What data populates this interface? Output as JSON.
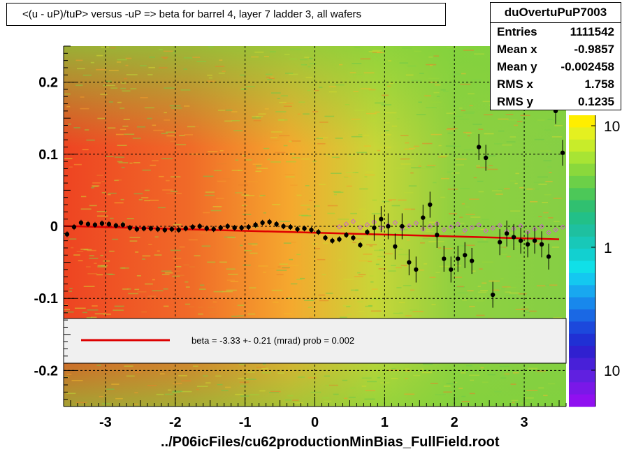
{
  "chart_data": {
    "type": "heatmap",
    "title": "<(u - uP)/tuP> versus  -uP => beta for barrel 4, layer 7 ladder 3, all wafers",
    "xlabel": "../P06icFiles/cu62productionMinBias_FullField.root",
    "ylabel": "",
    "xlim": [
      -3.6,
      3.6
    ],
    "ylim": [
      -0.25,
      0.25
    ],
    "x_ticks": [
      -3,
      -2,
      -1,
      0,
      1,
      2,
      3
    ],
    "y_ticks": [
      -0.2,
      -0.1,
      0,
      0.1,
      0.2
    ],
    "x_tick_labels": [
      "-3",
      "-2",
      "-1",
      "0",
      "1",
      "2",
      "3"
    ],
    "y_tick_labels": [
      "-0.2",
      "-0.1",
      "0",
      "0.1",
      "0.2"
    ],
    "grid": true,
    "colorbar": {
      "ticks": [
        "10",
        "1",
        "10"
      ],
      "log": true
    },
    "stats": {
      "name": "duOvertuPuP7003",
      "rows": [
        {
          "label": "Entries",
          "value": "1111542"
        },
        {
          "label": "Mean x",
          "value": "-0.9857"
        },
        {
          "label": "Mean y",
          "value": "-0.002458"
        },
        {
          "label": "RMS x",
          "value": "1.758"
        },
        {
          "label": "RMS y",
          "value": "0.1235"
        }
      ]
    },
    "legend": {
      "text": "beta =   -3.33 +-  0.21 (mrad) prob = 0.002",
      "line_color": "#dd0000"
    },
    "fit_line": {
      "x": [
        -3.6,
        3.5
      ],
      "y": [
        0.0005,
        -0.018
      ]
    },
    "profile_points": {
      "x": [
        -3.55,
        -3.45,
        -3.35,
        -3.25,
        -3.15,
        -3.05,
        -2.95,
        -2.85,
        -2.75,
        -2.65,
        -2.55,
        -2.45,
        -2.35,
        -2.25,
        -2.15,
        -2.05,
        -1.95,
        -1.85,
        -1.75,
        -1.65,
        -1.55,
        -1.45,
        -1.35,
        -1.25,
        -1.15,
        -1.05,
        -0.95,
        -0.85,
        -0.75,
        -0.65,
        -0.55,
        -0.45,
        -0.35,
        -0.25,
        -0.15,
        -0.05,
        0.05,
        0.15,
        0.25,
        0.35,
        0.45,
        0.55,
        0.65,
        0.75,
        0.85,
        0.95,
        1.05,
        1.15,
        1.25,
        1.35,
        1.45,
        1.55,
        1.65,
        1.75,
        1.85,
        1.95,
        2.05,
        2.15,
        2.25,
        2.35,
        2.45,
        2.55,
        2.65,
        2.75,
        2.85,
        2.95,
        3.05,
        3.15,
        3.25,
        3.35,
        3.45,
        3.55
      ],
      "y": [
        -0.011,
        -0.001,
        0.005,
        0.003,
        0.002,
        0.004,
        0.003,
        0.001,
        0.002,
        -0.002,
        -0.004,
        -0.003,
        -0.003,
        -0.004,
        -0.005,
        -0.004,
        -0.005,
        -0.003,
        -0.001,
        0.0,
        -0.003,
        -0.004,
        -0.002,
        0.0,
        -0.002,
        -0.002,
        -0.001,
        0.002,
        0.005,
        0.006,
        0.003,
        0.0,
        -0.001,
        -0.004,
        -0.003,
        -0.005,
        -0.008,
        -0.016,
        -0.02,
        -0.018,
        -0.012,
        -0.016,
        -0.026,
        -0.008,
        -0.002,
        0.01,
        0.0,
        -0.028,
        0.0,
        -0.05,
        -0.06,
        0.012,
        0.03,
        -0.012,
        -0.045,
        -0.06,
        -0.045,
        -0.04,
        -0.048,
        0.11,
        0.095,
        -0.095,
        -0.022,
        -0.01,
        -0.015,
        -0.02,
        -0.025,
        -0.02,
        -0.025,
        -0.042,
        0.16,
        0.102
      ]
    }
  }
}
